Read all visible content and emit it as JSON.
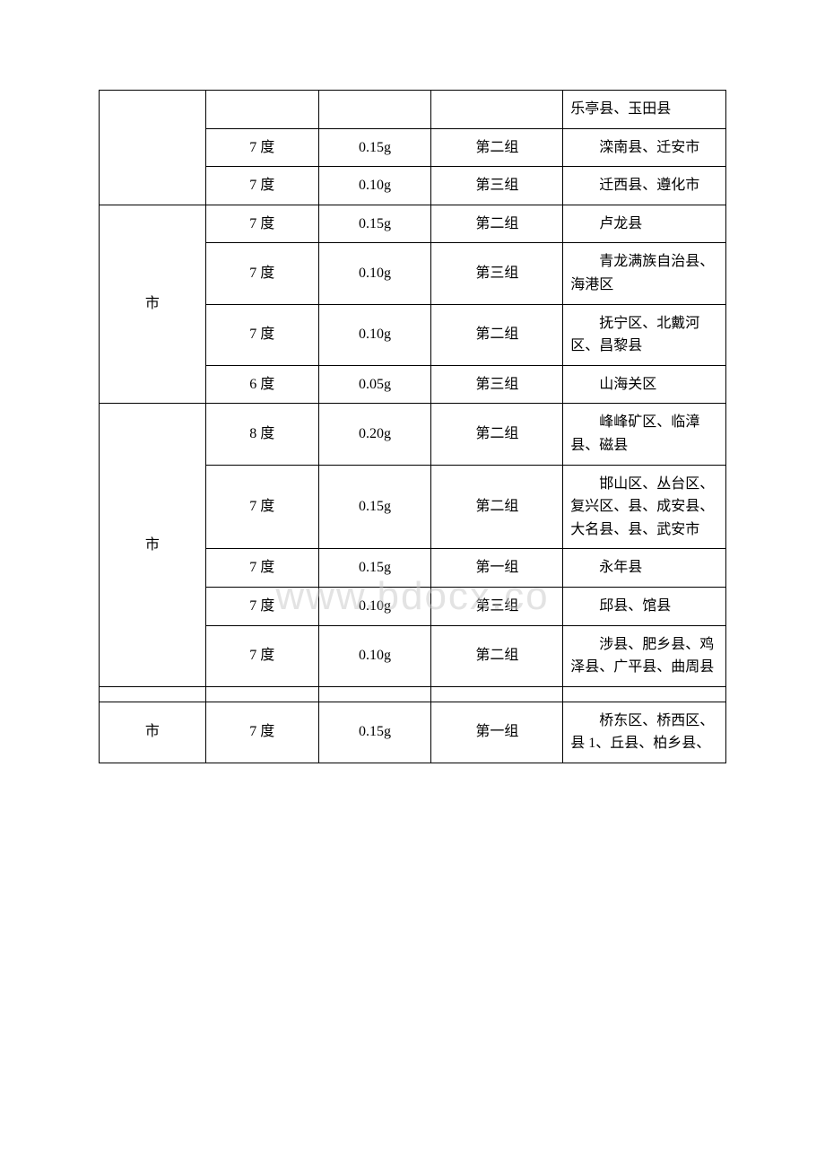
{
  "watermark": "www.bdocx.co",
  "rows": [
    {
      "city": "",
      "cityRowspan": 3,
      "degree": "",
      "accel": "",
      "group": "",
      "counties": "乐亭县、玉田县"
    },
    {
      "degree": "7 度",
      "accel": "0.15g",
      "group": "第二组",
      "counties": "　　滦南县、迁安市"
    },
    {
      "degree": "7 度",
      "accel": "0.10g",
      "group": "第三组",
      "counties": "　　迁西县、遵化市"
    },
    {
      "city": "市",
      "cityRowspan": 4,
      "degree": "7 度",
      "accel": "0.15g",
      "group": "第二组",
      "counties": "　　卢龙县"
    },
    {
      "degree": "7 度",
      "accel": "0.10g",
      "group": "第三组",
      "counties": "　　青龙满族自治县、海港区"
    },
    {
      "degree": "7 度",
      "accel": "0.10g",
      "group": "第二组",
      "counties": "　　抚宁区、北戴河区、昌黎县"
    },
    {
      "degree": "6 度",
      "accel": "0.05g",
      "group": "第三组",
      "counties": "　　山海关区"
    },
    {
      "city": "市",
      "cityRowspan": 5,
      "degree": "8 度",
      "accel": "0.20g",
      "group": "第二组",
      "counties": "　　峰峰矿区、临漳县、磁县"
    },
    {
      "degree": "7 度",
      "accel": "0.15g",
      "group": "第二组",
      "counties": "　　邯山区、丛台区、复兴区、县、成安县、大名县、县、武安市"
    },
    {
      "degree": "7 度",
      "accel": "0.15g",
      "group": "第一组",
      "counties": "　　永年县"
    },
    {
      "degree": "7 度",
      "accel": "0.10g",
      "group": "第三组",
      "counties": "　　邱县、馆县"
    },
    {
      "degree": "7 度",
      "accel": "0.10g",
      "group": "第二组",
      "counties": "　　涉县、肥乡县、鸡泽县、广平县、曲周县"
    },
    {
      "city": "",
      "cityRowspan": 1,
      "degree": "",
      "accel": "",
      "group": "",
      "counties": ""
    },
    {
      "city": "市",
      "cityRowspan": 1,
      "degree": "7 度",
      "accel": "0.15g",
      "group": "第一组",
      "counties": "　　桥东区、桥西区、县 1、丘县、柏乡县、"
    }
  ],
  "styling": {
    "border_color": "#000000",
    "background_color": "#ffffff",
    "text_color": "#000000",
    "font_family": "SimSun",
    "font_size": 16,
    "watermark_color": "rgba(200,200,200,0.5)"
  }
}
